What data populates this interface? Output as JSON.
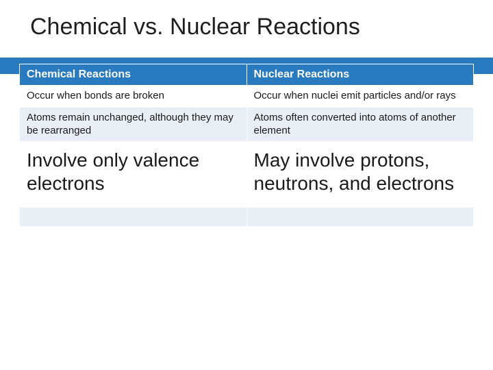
{
  "title": "Chemical vs. Nuclear Reactions",
  "colors": {
    "accent": "#2a7ac0",
    "band_light": "#e9eff7",
    "band_white": "#ffffff",
    "text": "#1a1a1a",
    "header_text": "#ffffff"
  },
  "table": {
    "columns": [
      "Chemical Reactions",
      "Nuclear Reactions"
    ],
    "rows": [
      {
        "band": "white",
        "cells": [
          "Occur when bonds are broken",
          "Occur when nuclei emit particles and/or rays"
        ]
      },
      {
        "band": "light",
        "cells": [
          "Atoms remain unchanged, although they may be rearranged",
          "Atoms often converted into atoms of another element"
        ]
      },
      {
        "band": "white",
        "big": true,
        "cells": [
          "Involve only valence electrons",
          "May involve protons, neutrons, and electrons"
        ]
      },
      {
        "band": "light",
        "empty": true,
        "cells": [
          "",
          ""
        ]
      },
      {
        "band": "white",
        "empty": true,
        "cells": [
          "",
          ""
        ]
      }
    ],
    "typography": {
      "title_fontsize": 34,
      "header_fontsize": 16,
      "body_fontsize": 15,
      "big_fontsize": 28
    }
  }
}
